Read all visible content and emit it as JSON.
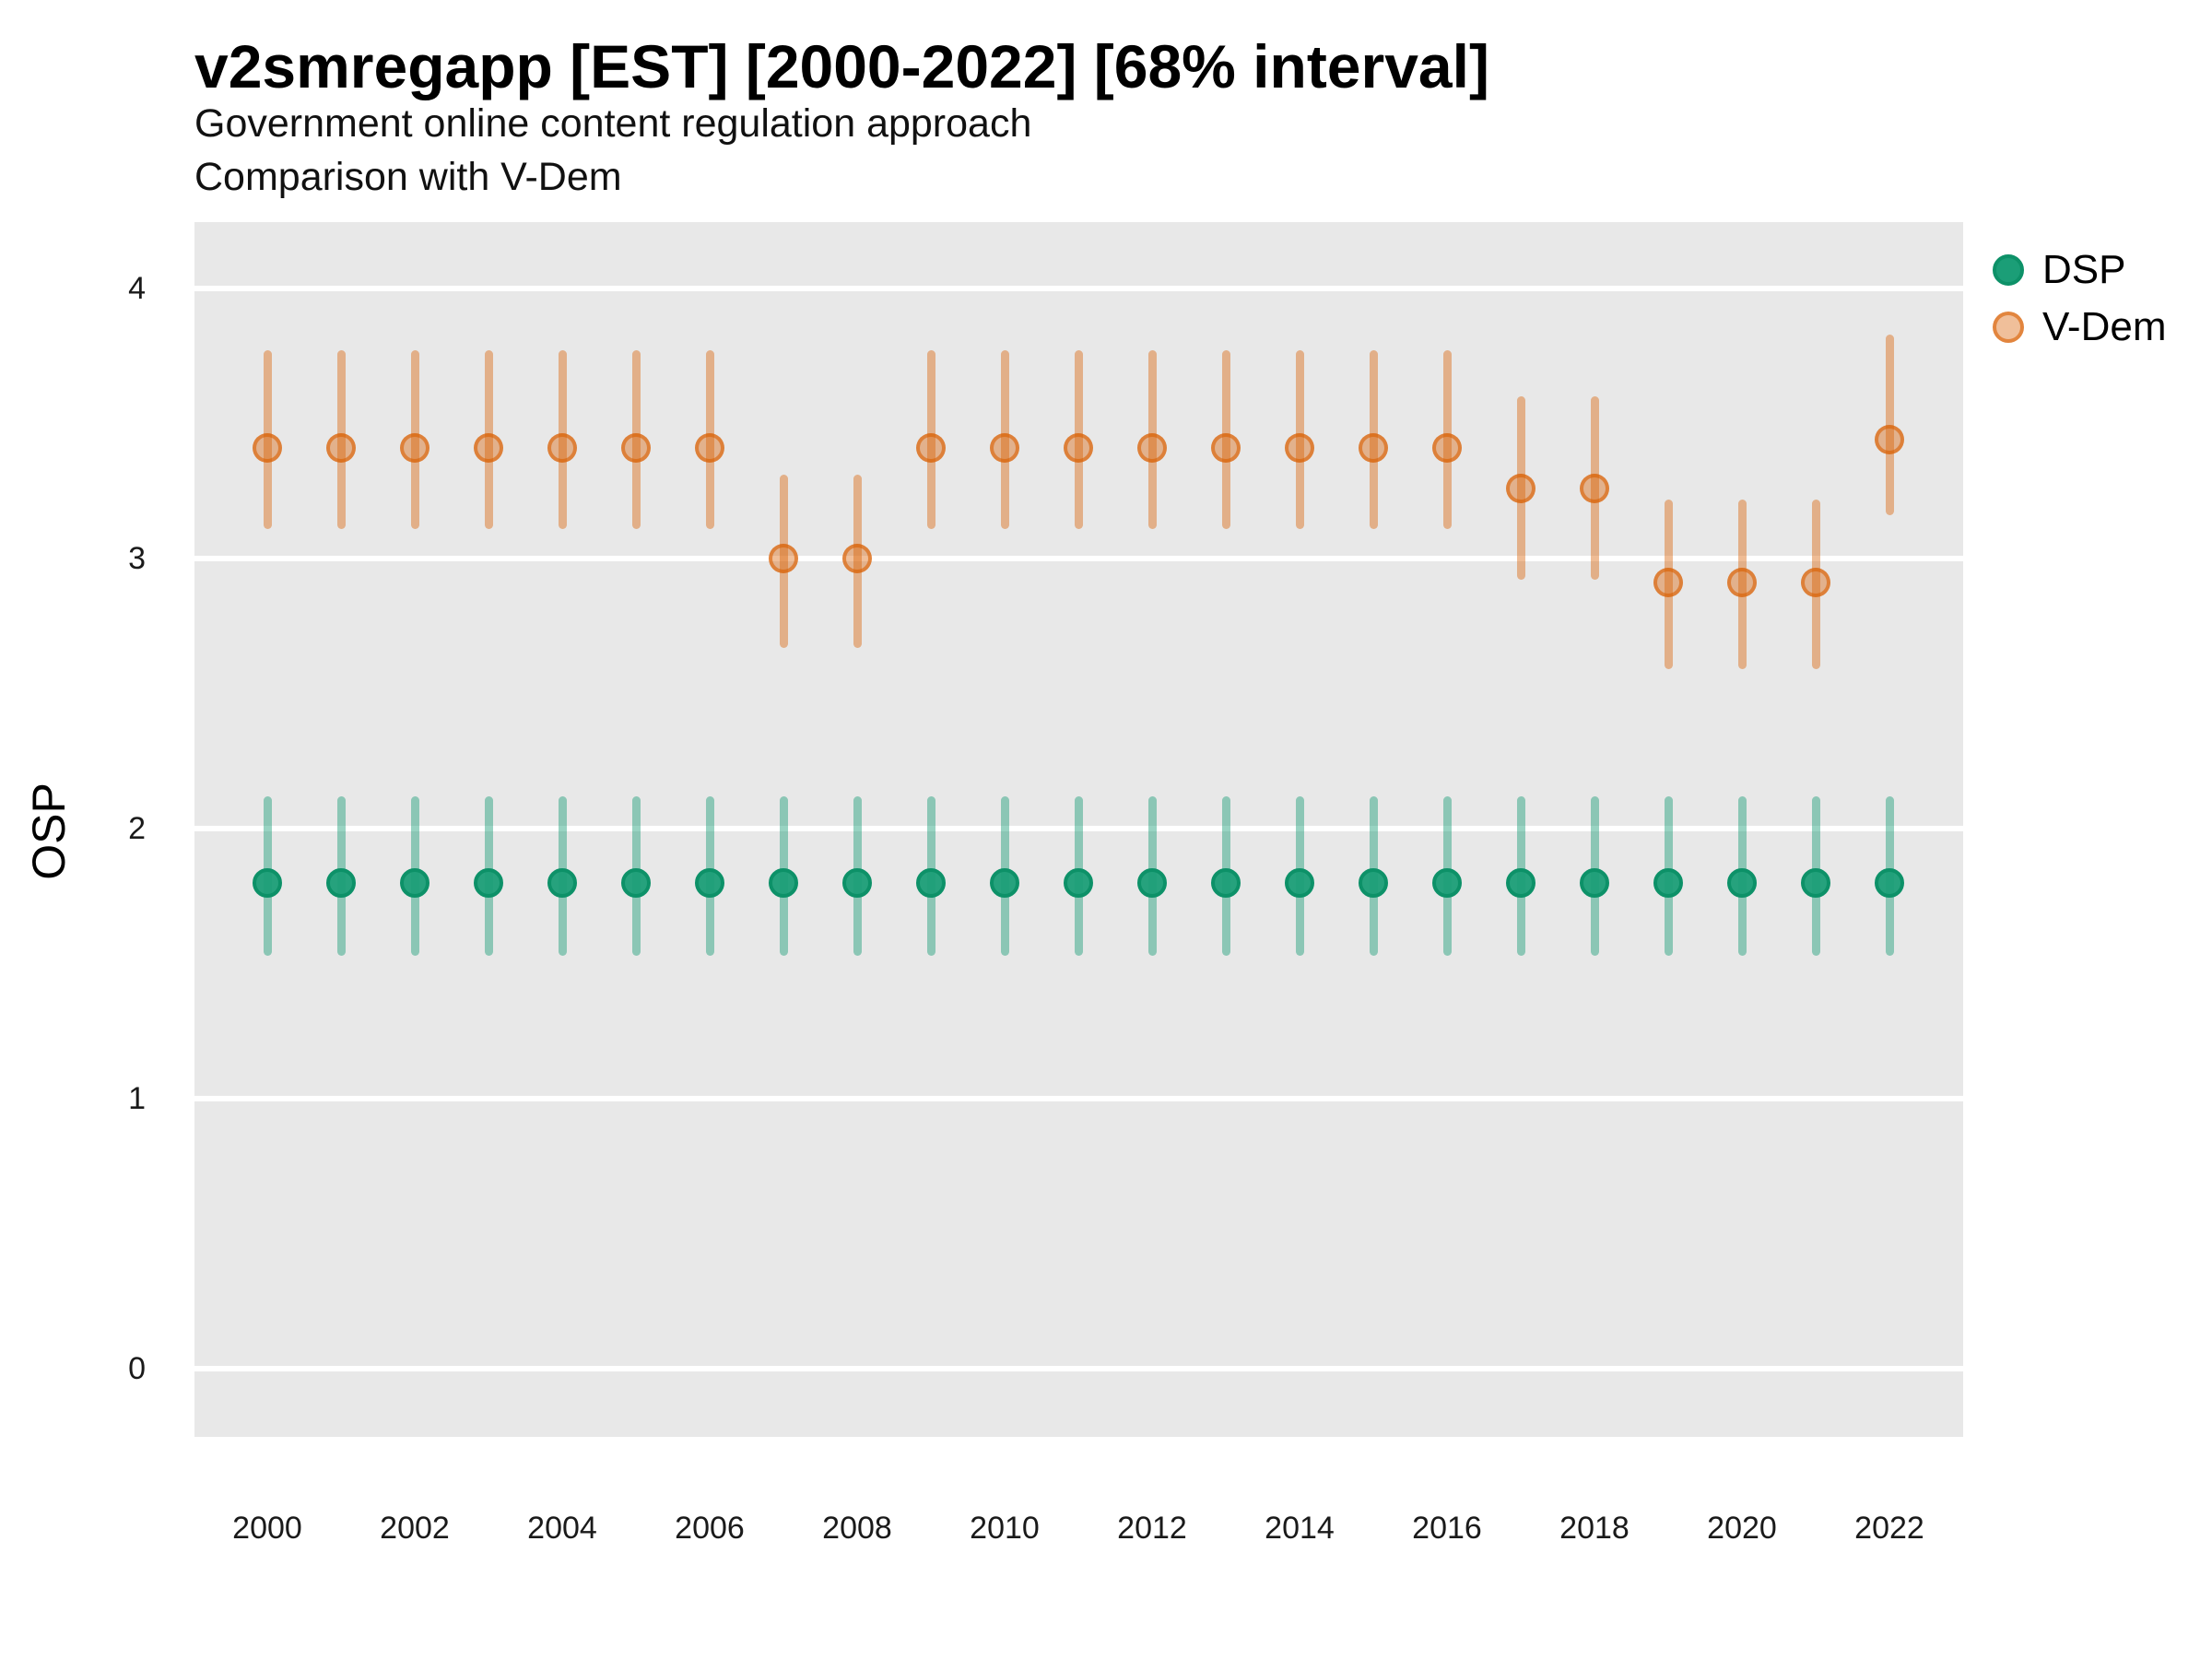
{
  "header": {
    "title": "v2smregapp [EST] [2000-2022] [68% interval]",
    "subtitle_line1": "Government online content regulation approach",
    "subtitle_line2": "Comparison with V-Dem"
  },
  "axes": {
    "y_label": "OSP",
    "y_tick_labels": [
      "0",
      "1",
      "2",
      "3",
      "4"
    ],
    "x_tick_labels": [
      "2000",
      "2002",
      "2004",
      "2006",
      "2008",
      "2010",
      "2012",
      "2014",
      "2016",
      "2018",
      "2020",
      "2022"
    ]
  },
  "legend": {
    "items": [
      {
        "key": "dsp",
        "label": "DSP"
      },
      {
        "key": "vdem",
        "label": "V-Dem"
      }
    ]
  },
  "colors": {
    "panel_background": "#e8e8e8",
    "grid_line": "#ffffff",
    "axis_text": "#1a1a1a",
    "dsp": {
      "point": "rgba(27,158,119,0.95)",
      "ring": "rgba(13,145,104,1)",
      "interval": "rgba(27,158,119,0.45)",
      "legend_point": "rgba(27,158,119,1)",
      "legend_ring": "rgba(13,145,104,1)"
    },
    "vdem": {
      "point": "rgba(217,95,2,0.40)",
      "ring": "rgba(217,95,2,0.60)",
      "interval": "rgba(217,95,2,0.42)",
      "legend_point": "rgba(217,95,2,0.40)",
      "legend_ring": "rgba(217,95,2,0.60)"
    }
  },
  "chart_data": {
    "type": "scatter",
    "subtype": "pointrange",
    "interval_level": "68%",
    "title": "v2smregapp [EST] [2000-2022] [68% interval]",
    "xlabel": "",
    "ylabel": "OSP",
    "ylim": [
      -0.25,
      4.25
    ],
    "y_ticks": [
      0,
      1,
      2,
      3,
      4
    ],
    "x_ticks": [
      2000,
      2002,
      2004,
      2006,
      2008,
      2010,
      2012,
      2014,
      2016,
      2018,
      2020,
      2022
    ],
    "grid": true,
    "legend_position": "right-top",
    "series": [
      {
        "key": "dsp",
        "name": "DSP",
        "points": [
          {
            "x": 2000,
            "est": 1.8,
            "lo": 1.53,
            "hi": 2.12
          },
          {
            "x": 2001,
            "est": 1.8,
            "lo": 1.53,
            "hi": 2.12
          },
          {
            "x": 2002,
            "est": 1.8,
            "lo": 1.53,
            "hi": 2.12
          },
          {
            "x": 2003,
            "est": 1.8,
            "lo": 1.53,
            "hi": 2.12
          },
          {
            "x": 2004,
            "est": 1.8,
            "lo": 1.53,
            "hi": 2.12
          },
          {
            "x": 2005,
            "est": 1.8,
            "lo": 1.53,
            "hi": 2.12
          },
          {
            "x": 2006,
            "est": 1.8,
            "lo": 1.53,
            "hi": 2.12
          },
          {
            "x": 2007,
            "est": 1.8,
            "lo": 1.53,
            "hi": 2.12
          },
          {
            "x": 2008,
            "est": 1.8,
            "lo": 1.53,
            "hi": 2.12
          },
          {
            "x": 2009,
            "est": 1.8,
            "lo": 1.53,
            "hi": 2.12
          },
          {
            "x": 2010,
            "est": 1.8,
            "lo": 1.53,
            "hi": 2.12
          },
          {
            "x": 2011,
            "est": 1.8,
            "lo": 1.53,
            "hi": 2.12
          },
          {
            "x": 2012,
            "est": 1.8,
            "lo": 1.53,
            "hi": 2.12
          },
          {
            "x": 2013,
            "est": 1.8,
            "lo": 1.53,
            "hi": 2.12
          },
          {
            "x": 2014,
            "est": 1.8,
            "lo": 1.53,
            "hi": 2.12
          },
          {
            "x": 2015,
            "est": 1.8,
            "lo": 1.53,
            "hi": 2.12
          },
          {
            "x": 2016,
            "est": 1.8,
            "lo": 1.53,
            "hi": 2.12
          },
          {
            "x": 2017,
            "est": 1.8,
            "lo": 1.53,
            "hi": 2.12
          },
          {
            "x": 2018,
            "est": 1.8,
            "lo": 1.53,
            "hi": 2.12
          },
          {
            "x": 2019,
            "est": 1.8,
            "lo": 1.53,
            "hi": 2.12
          },
          {
            "x": 2020,
            "est": 1.8,
            "lo": 1.53,
            "hi": 2.12
          },
          {
            "x": 2021,
            "est": 1.8,
            "lo": 1.53,
            "hi": 2.12
          },
          {
            "x": 2022,
            "est": 1.8,
            "lo": 1.53,
            "hi": 2.12
          }
        ]
      },
      {
        "key": "vdem",
        "name": "V-Dem",
        "points": [
          {
            "x": 2000,
            "est": 3.41,
            "lo": 3.11,
            "hi": 3.77
          },
          {
            "x": 2001,
            "est": 3.41,
            "lo": 3.11,
            "hi": 3.77
          },
          {
            "x": 2002,
            "est": 3.41,
            "lo": 3.11,
            "hi": 3.77
          },
          {
            "x": 2003,
            "est": 3.41,
            "lo": 3.11,
            "hi": 3.77
          },
          {
            "x": 2004,
            "est": 3.41,
            "lo": 3.11,
            "hi": 3.77
          },
          {
            "x": 2005,
            "est": 3.41,
            "lo": 3.11,
            "hi": 3.77
          },
          {
            "x": 2006,
            "est": 3.41,
            "lo": 3.11,
            "hi": 3.77
          },
          {
            "x": 2007,
            "est": 3.0,
            "lo": 2.67,
            "hi": 3.31
          },
          {
            "x": 2008,
            "est": 3.0,
            "lo": 2.67,
            "hi": 3.31
          },
          {
            "x": 2009,
            "est": 3.41,
            "lo": 3.11,
            "hi": 3.77
          },
          {
            "x": 2010,
            "est": 3.41,
            "lo": 3.11,
            "hi": 3.77
          },
          {
            "x": 2011,
            "est": 3.41,
            "lo": 3.11,
            "hi": 3.77
          },
          {
            "x": 2012,
            "est": 3.41,
            "lo": 3.11,
            "hi": 3.77
          },
          {
            "x": 2013,
            "est": 3.41,
            "lo": 3.11,
            "hi": 3.77
          },
          {
            "x": 2014,
            "est": 3.41,
            "lo": 3.11,
            "hi": 3.77
          },
          {
            "x": 2015,
            "est": 3.41,
            "lo": 3.11,
            "hi": 3.77
          },
          {
            "x": 2016,
            "est": 3.41,
            "lo": 3.11,
            "hi": 3.77
          },
          {
            "x": 2017,
            "est": 3.26,
            "lo": 2.92,
            "hi": 3.6
          },
          {
            "x": 2018,
            "est": 3.26,
            "lo": 2.92,
            "hi": 3.6
          },
          {
            "x": 2019,
            "est": 2.91,
            "lo": 2.59,
            "hi": 3.22
          },
          {
            "x": 2020,
            "est": 2.91,
            "lo": 2.59,
            "hi": 3.22
          },
          {
            "x": 2021,
            "est": 2.91,
            "lo": 2.59,
            "hi": 3.22
          },
          {
            "x": 2022,
            "est": 3.44,
            "lo": 3.16,
            "hi": 3.83
          }
        ]
      }
    ]
  }
}
